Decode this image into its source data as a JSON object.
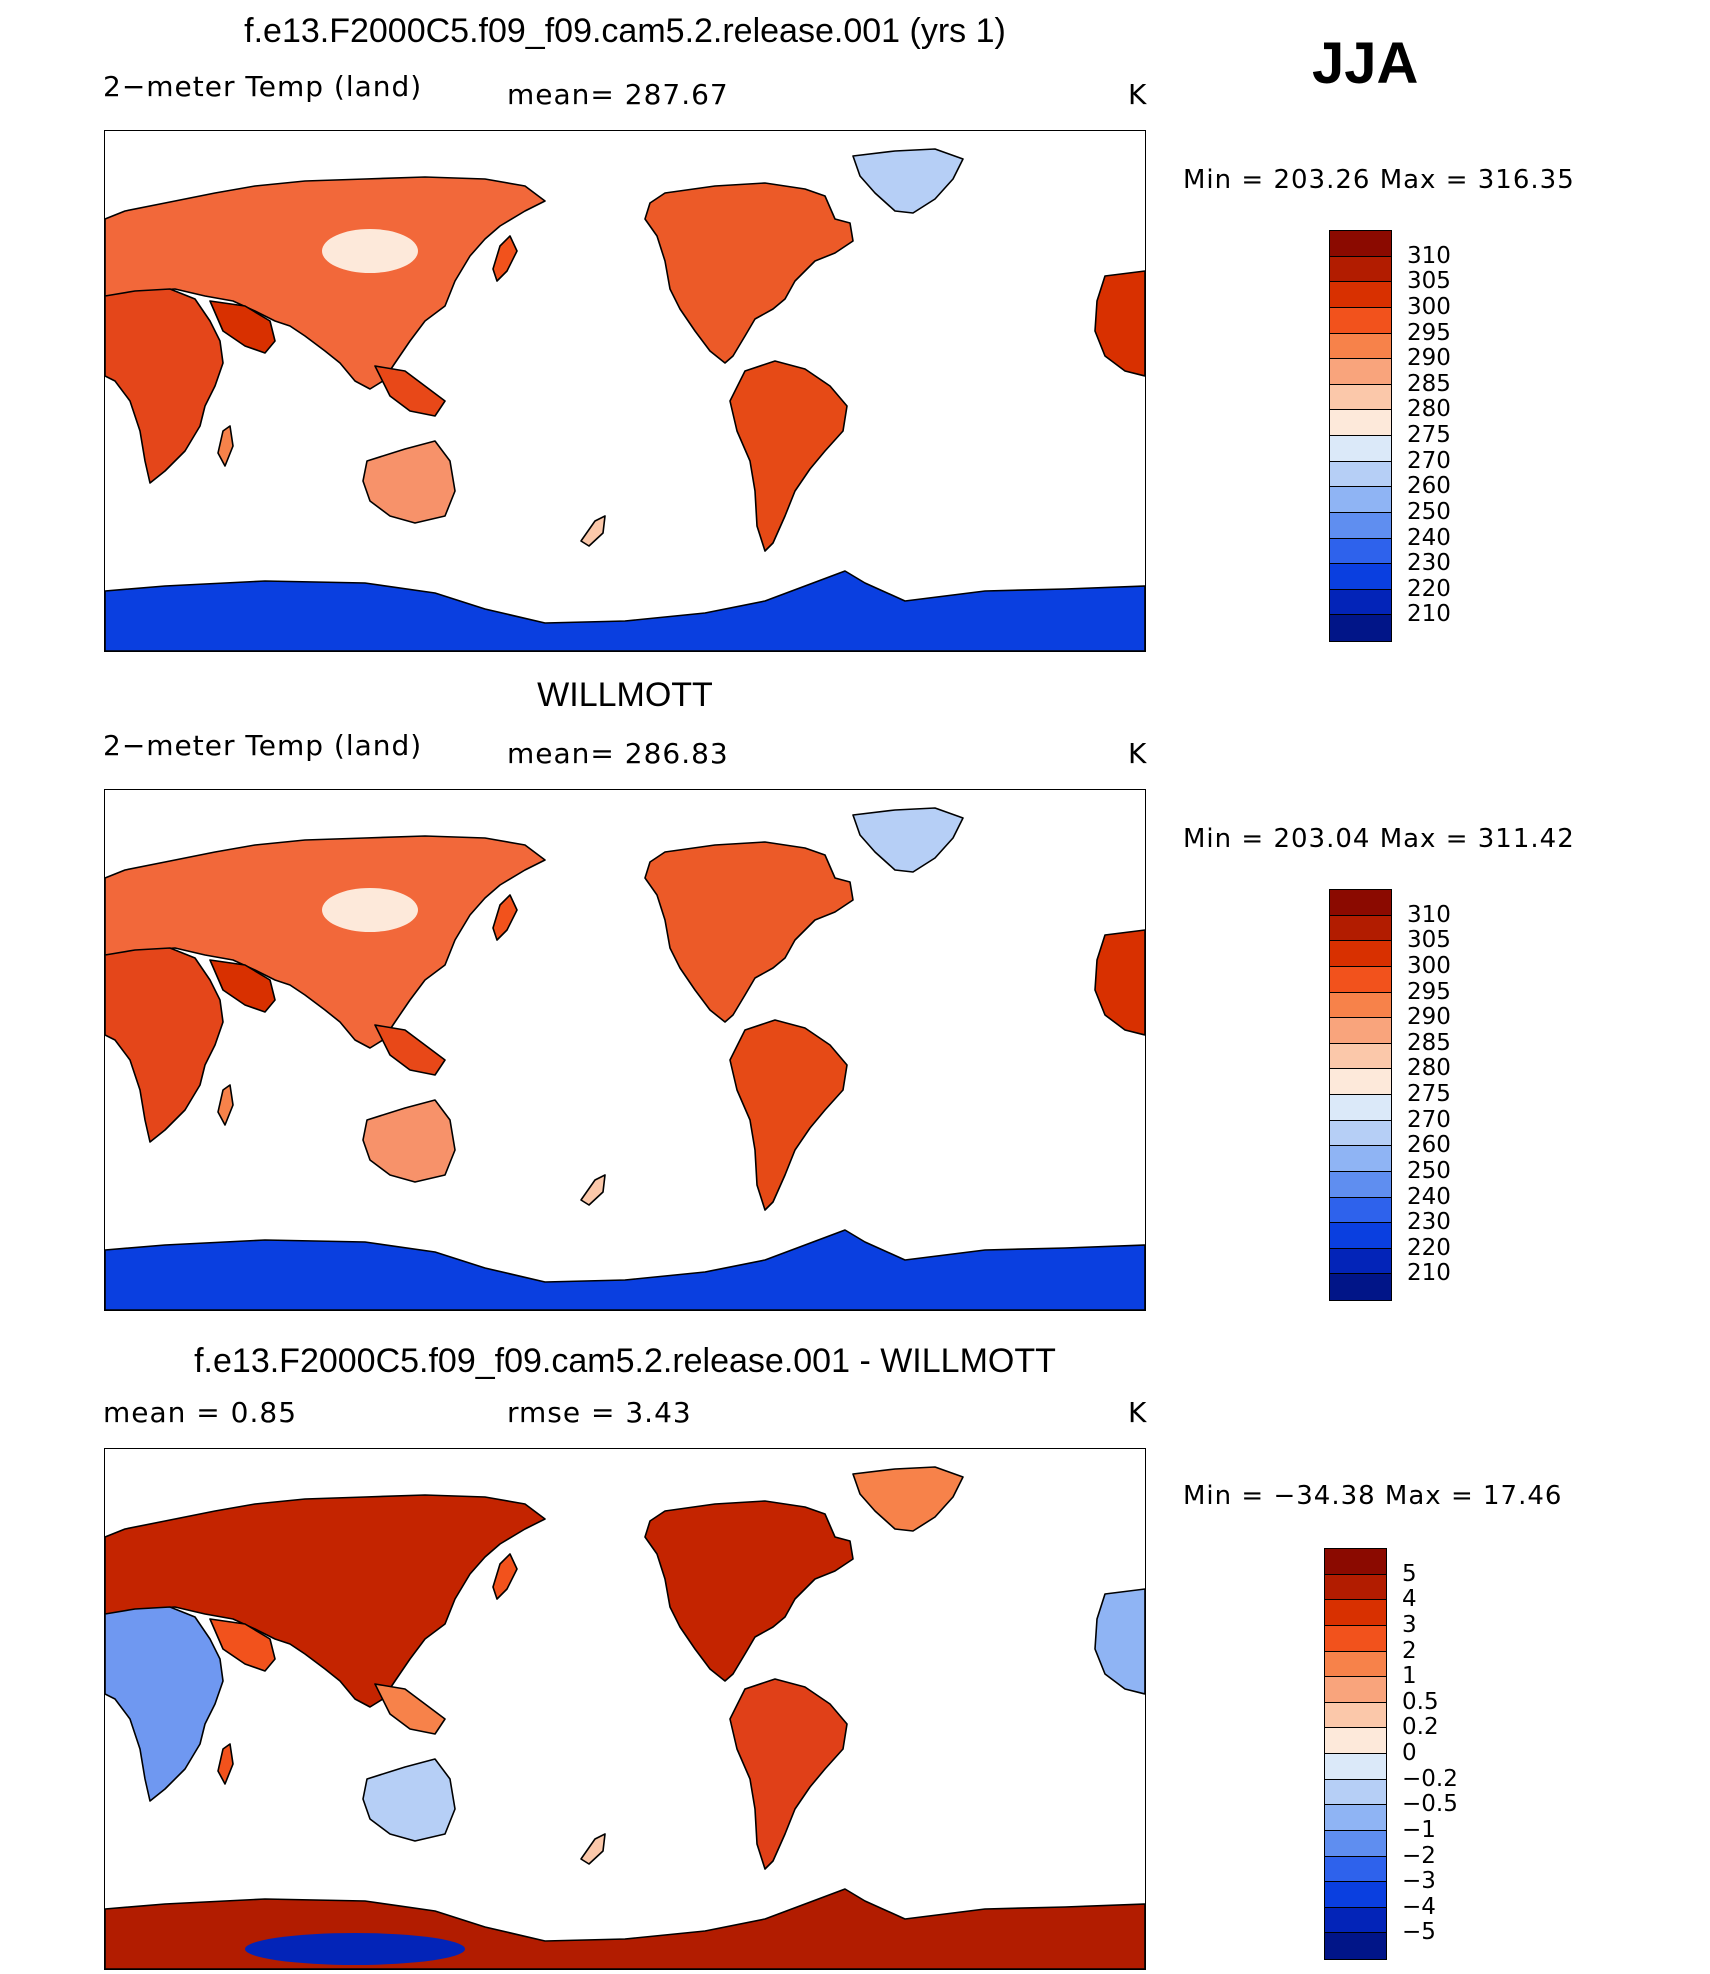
{
  "season": "JJA",
  "panels": [
    {
      "title": "f.e13.F2000C5.f09_f09.cam5.2.release.001 (yrs 1)",
      "left_label": "2−meter Temp (land)",
      "mid_label": "mean=  287.67",
      "units": "K",
      "minmax": "Min  =  203.26  Max  =  316.35",
      "kind": "abs",
      "colorbar": {
        "labels": [
          "310",
          "305",
          "300",
          "295",
          "290",
          "285",
          "280",
          "275",
          "270",
          "260",
          "250",
          "240",
          "230",
          "220",
          "210"
        ],
        "colors": [
          "#8b0a00",
          "#b21c00",
          "#d83000",
          "#f2521c",
          "#f7824a",
          "#f9a47c",
          "#fbc8aa",
          "#fde9da",
          "#dbe9f9",
          "#b6cff6",
          "#8fb4f4",
          "#5f8ef0",
          "#2e62ec",
          "#0a3fe0",
          "#0324b8",
          "#011588"
        ]
      }
    },
    {
      "title": "WILLMOTT",
      "left_label": "2−meter Temp (land)",
      "mid_label": "mean=  286.83",
      "units": "K",
      "minmax": "Min  =  203.04  Max  =  311.42",
      "kind": "abs",
      "colorbar": {
        "labels": [
          "310",
          "305",
          "300",
          "295",
          "290",
          "285",
          "280",
          "275",
          "270",
          "260",
          "250",
          "240",
          "230",
          "220",
          "210"
        ],
        "colors": [
          "#8b0a00",
          "#b21c00",
          "#d83000",
          "#f2521c",
          "#f7824a",
          "#f9a47c",
          "#fbc8aa",
          "#fde9da",
          "#dbe9f9",
          "#b6cff6",
          "#8fb4f4",
          "#5f8ef0",
          "#2e62ec",
          "#0a3fe0",
          "#0324b8",
          "#011588"
        ]
      }
    },
    {
      "title": "f.e13.F2000C5.f09_f09.cam5.2.release.001 - WILLMOTT",
      "left_label": "mean  =      0.85",
      "mid_label": "rmse  =       3.43",
      "units": "K",
      "minmax": "Min  =  −34.38  Max  =     17.46",
      "kind": "diff",
      "colorbar": {
        "labels": [
          "5",
          "4",
          "3",
          "2",
          "1",
          "0.5",
          "0.2",
          "0",
          "−0.2",
          "−0.5",
          "−1",
          "−2",
          "−3",
          "−4",
          "−5"
        ],
        "colors": [
          "#8b0a00",
          "#b21c00",
          "#d83000",
          "#f2521c",
          "#f7824a",
          "#f9a47c",
          "#fbc8aa",
          "#fde9da",
          "#dbe9f9",
          "#b6cff6",
          "#8fb4f4",
          "#5f8ef0",
          "#2e62ec",
          "#0a3fe0",
          "#0324b8",
          "#011588"
        ]
      }
    }
  ]
}
